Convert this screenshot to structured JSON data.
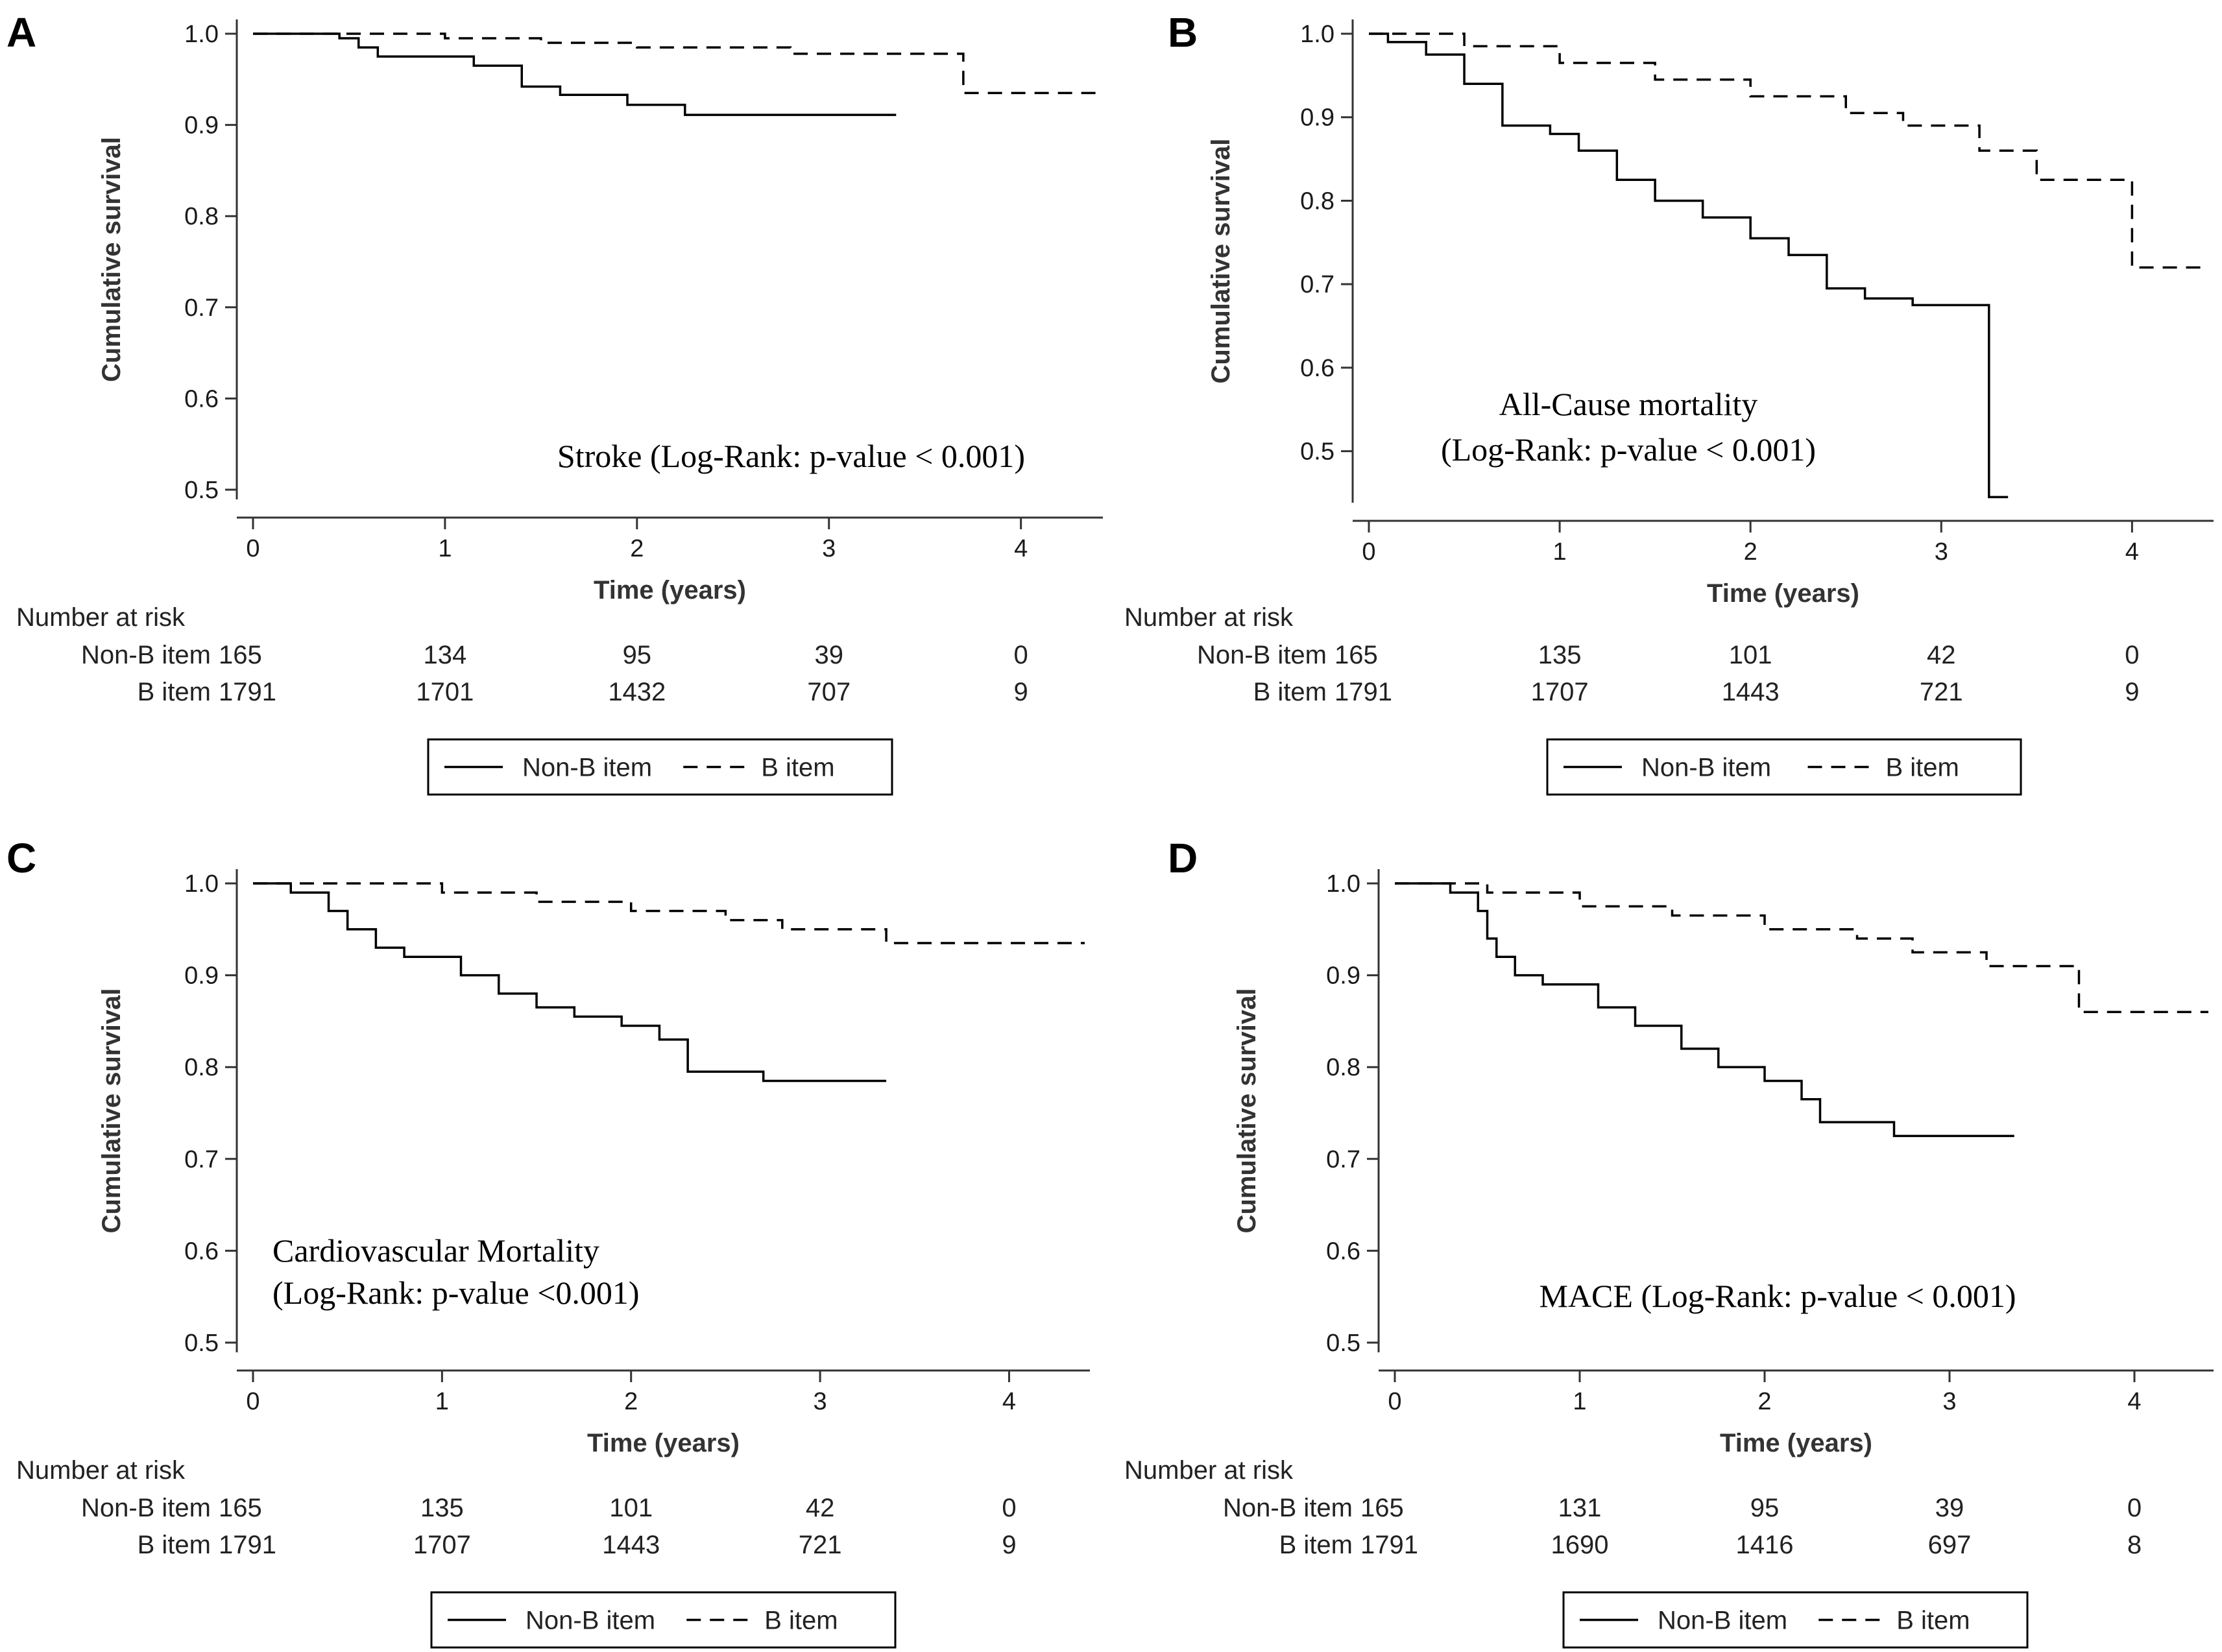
{
  "legend": {
    "solid_label": "Non-B item",
    "dashed_label": "B item"
  },
  "chart_data": [
    {
      "panel": "A",
      "type": "line",
      "subtype": "kaplan-meier",
      "xlabel": "Time (years)",
      "ylabel": "Cumulative survival",
      "xlim": [
        0,
        4.4
      ],
      "ylim": [
        0.5,
        1.0
      ],
      "xticks": [
        0,
        1,
        2,
        3,
        4
      ],
      "yticks": [
        0.5,
        0.6,
        0.7,
        0.8,
        0.9,
        1.0
      ],
      "ytick_labels": [
        "0.5",
        "0.6",
        "0.7",
        "0.8",
        "0.9",
        "1.0"
      ],
      "annotation": [
        "Stroke (Log-Rank: p-value < 0.001)"
      ],
      "annotation_anchor": "bottom-right",
      "series": [
        {
          "name": "Non-B item",
          "style": "solid",
          "x": [
            0,
            0.45,
            0.55,
            0.65,
            0.8,
            1.15,
            1.4,
            1.6,
            1.95,
            2.25,
            3.35
          ],
          "y": [
            1.0,
            0.995,
            0.985,
            0.975,
            0.975,
            0.965,
            0.942,
            0.933,
            0.922,
            0.911,
            0.911
          ]
        },
        {
          "name": "B item",
          "style": "dashed",
          "x": [
            0,
            0.5,
            1.0,
            1.5,
            2.0,
            2.8,
            3.7,
            4.4
          ],
          "y": [
            1.0,
            1.0,
            0.995,
            0.99,
            0.985,
            0.978,
            0.935,
            0.935
          ]
        }
      ],
      "risk_table": {
        "title": "Number at risk",
        "rows": [
          {
            "label": "Non-B item",
            "values": [
              "165",
              "134",
              "95",
              "39",
              "0"
            ]
          },
          {
            "label": "B item",
            "values": [
              "1791",
              "1701",
              "1432",
              "707",
              "9"
            ]
          }
        ]
      }
    },
    {
      "panel": "B",
      "type": "line",
      "subtype": "kaplan-meier",
      "xlabel": "Time (years)",
      "ylabel": "Cumulative survival",
      "xlim": [
        0,
        4.4
      ],
      "ylim": [
        0.45,
        1.0
      ],
      "xticks": [
        0,
        1,
        2,
        3,
        4
      ],
      "yticks": [
        0.5,
        0.6,
        0.7,
        0.8,
        0.9,
        1.0
      ],
      "ytick_labels": [
        "0.5",
        "0.6",
        "0.7",
        "0.8",
        "0.9",
        "1.0"
      ],
      "annotation": [
        "All-Cause mortality",
        "(Log-Rank: p-value < 0.001)"
      ],
      "annotation_anchor": "middle-left",
      "series": [
        {
          "name": "Non-B item",
          "style": "solid",
          "x": [
            0,
            0.1,
            0.3,
            0.5,
            0.7,
            0.95,
            1.1,
            1.3,
            1.5,
            1.75,
            2.0,
            2.2,
            2.4,
            2.6,
            2.85,
            3.25,
            3.35
          ],
          "y": [
            1.0,
            0.99,
            0.975,
            0.94,
            0.89,
            0.88,
            0.86,
            0.825,
            0.8,
            0.78,
            0.755,
            0.735,
            0.695,
            0.683,
            0.675,
            0.445,
            0.445
          ]
        },
        {
          "name": "B item",
          "style": "dashed",
          "x": [
            0,
            0.5,
            1.0,
            1.5,
            2.0,
            2.5,
            2.8,
            3.2,
            3.5,
            4.0,
            4.4
          ],
          "y": [
            1.0,
            0.985,
            0.965,
            0.945,
            0.925,
            0.905,
            0.89,
            0.86,
            0.825,
            0.72,
            0.72
          ]
        }
      ],
      "risk_table": {
        "title": "Number at risk",
        "rows": [
          {
            "label": "Non-B item",
            "values": [
              "165",
              "135",
              "101",
              "42",
              "0"
            ]
          },
          {
            "label": "B item",
            "values": [
              "1791",
              "1707",
              "1443",
              "721",
              "9"
            ]
          }
        ]
      }
    },
    {
      "panel": "C",
      "type": "line",
      "subtype": "kaplan-meier",
      "xlabel": "Time (years)",
      "ylabel": "Cumulative survival",
      "xlim": [
        0,
        4.4
      ],
      "ylim": [
        0.5,
        1.0
      ],
      "xticks": [
        0,
        1,
        2,
        3,
        4
      ],
      "yticks": [
        0.5,
        0.6,
        0.7,
        0.8,
        0.9,
        1.0
      ],
      "ytick_labels": [
        "0.5",
        "0.6",
        "0.7",
        "0.8",
        "0.9",
        "1.0"
      ],
      "annotation": [
        "Cardiovascular Mortality",
        "(Log-Rank: p-value <0.001)"
      ],
      "annotation_anchor": "bottom-left",
      "series": [
        {
          "name": "Non-B item",
          "style": "solid",
          "x": [
            0,
            0.2,
            0.4,
            0.5,
            0.65,
            0.8,
            1.1,
            1.3,
            1.5,
            1.7,
            1.95,
            2.15,
            2.3,
            2.7,
            3.35
          ],
          "y": [
            1.0,
            0.99,
            0.97,
            0.95,
            0.93,
            0.92,
            0.9,
            0.88,
            0.865,
            0.855,
            0.845,
            0.83,
            0.795,
            0.785,
            0.785
          ]
        },
        {
          "name": "B item",
          "style": "dashed",
          "x": [
            0,
            0.6,
            1.0,
            1.5,
            2.0,
            2.5,
            2.8,
            3.35,
            4.4
          ],
          "y": [
            1.0,
            1.0,
            0.99,
            0.98,
            0.97,
            0.96,
            0.95,
            0.935,
            0.935
          ]
        }
      ],
      "risk_table": {
        "title": "Number at risk",
        "rows": [
          {
            "label": "Non-B item",
            "values": [
              "165",
              "135",
              "101",
              "42",
              "0"
            ]
          },
          {
            "label": "B item",
            "values": [
              "1791",
              "1707",
              "1443",
              "721",
              "9"
            ]
          }
        ]
      }
    },
    {
      "panel": "D",
      "type": "line",
      "subtype": "kaplan-meier",
      "xlabel": "Time (years)",
      "ylabel": "Cumulative survival",
      "xlim": [
        0,
        4.4
      ],
      "ylim": [
        0.5,
        1.0
      ],
      "xticks": [
        0,
        1,
        2,
        3,
        4
      ],
      "yticks": [
        0.5,
        0.6,
        0.7,
        0.8,
        0.9,
        1.0
      ],
      "ytick_labels": [
        "0.5",
        "0.6",
        "0.7",
        "0.8",
        "0.9",
        "1.0"
      ],
      "annotation": [
        "MACE (Log-Rank: p-value < 0.001)"
      ],
      "annotation_anchor": "bottom-center",
      "series": [
        {
          "name": "Non-B item",
          "style": "solid",
          "x": [
            0,
            0.3,
            0.45,
            0.5,
            0.55,
            0.65,
            0.8,
            1.1,
            1.3,
            1.55,
            1.75,
            2.0,
            2.2,
            2.3,
            2.7,
            3.35
          ],
          "y": [
            1.0,
            0.99,
            0.97,
            0.94,
            0.92,
            0.9,
            0.89,
            0.865,
            0.845,
            0.82,
            0.8,
            0.785,
            0.765,
            0.74,
            0.725,
            0.725
          ]
        },
        {
          "name": "B item",
          "style": "dashed",
          "x": [
            0,
            0.5,
            1.0,
            1.5,
            2.0,
            2.5,
            2.8,
            3.2,
            3.7,
            4.4
          ],
          "y": [
            1.0,
            0.99,
            0.975,
            0.965,
            0.95,
            0.94,
            0.925,
            0.91,
            0.86,
            0.86
          ]
        }
      ],
      "risk_table": {
        "title": "Number at risk",
        "rows": [
          {
            "label": "Non-B item",
            "values": [
              "165",
              "131",
              "95",
              "39",
              "0"
            ]
          },
          {
            "label": "B item",
            "values": [
              "1791",
              "1690",
              "1416",
              "697",
              "8"
            ]
          }
        ]
      }
    }
  ]
}
